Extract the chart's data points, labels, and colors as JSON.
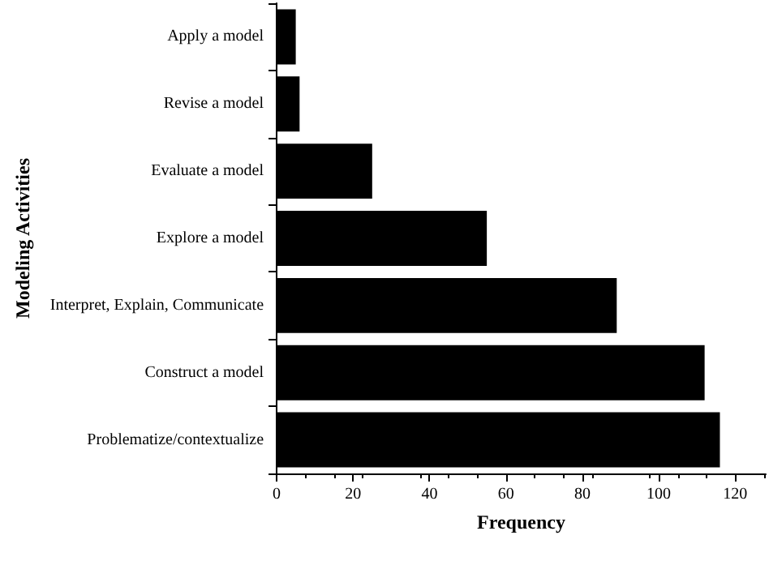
{
  "chart_data": {
    "type": "bar",
    "orientation": "horizontal",
    "xlabel": "Frequency",
    "ylabel": "Modeling Activities",
    "categories": [
      "Apply a model",
      "Revise a model",
      "Evaluate a model",
      "Explore a model",
      "Interpret, Explain, Communicate",
      "Construct a model",
      "Problematize/contextualize"
    ],
    "values": [
      5,
      6,
      25,
      55,
      89,
      112,
      116
    ],
    "color": "#000000",
    "xlim": [
      0,
      128
    ],
    "xticks": [
      0,
      20,
      40,
      60,
      80,
      100,
      120
    ]
  }
}
